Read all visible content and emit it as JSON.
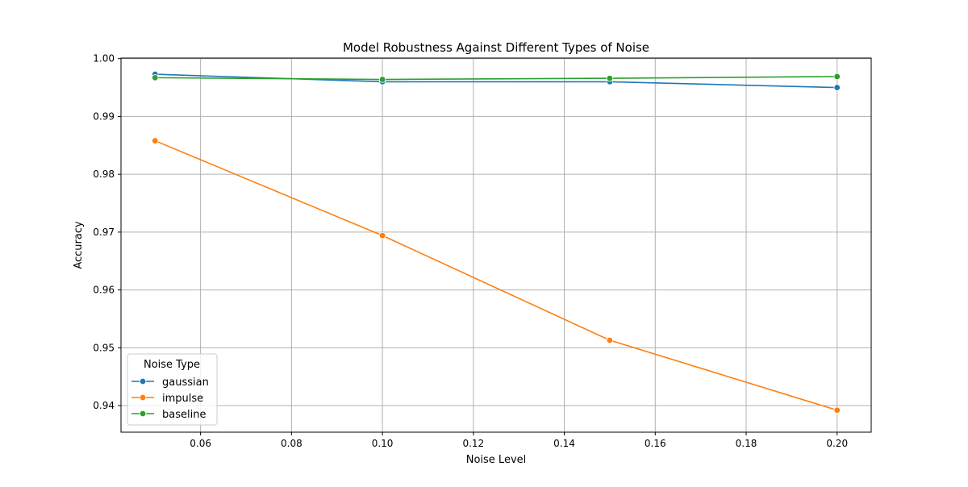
{
  "chart_data": {
    "type": "line",
    "title": "Model Robustness Against Different Types of Noise",
    "xlabel": "Noise Level",
    "ylabel": "Accuracy",
    "x": [
      0.05,
      0.1,
      0.15,
      0.2
    ],
    "xlim": [
      0.0425,
      0.2075
    ],
    "ylim": [
      0.9354,
      1.0001
    ],
    "xticks": [
      0.06,
      0.08,
      0.1,
      0.12,
      0.14,
      0.16,
      0.18,
      0.2
    ],
    "xtick_labels": [
      "0.06",
      "0.08",
      "0.10",
      "0.12",
      "0.14",
      "0.16",
      "0.18",
      "0.20"
    ],
    "yticks": [
      0.94,
      0.95,
      0.96,
      0.97,
      0.98,
      0.99,
      1.0
    ],
    "ytick_labels": [
      "0.94",
      "0.95",
      "0.96",
      "0.97",
      "0.98",
      "0.99",
      "1.00"
    ],
    "grid": true,
    "legend_title": "Noise Type",
    "legend_position": "bottom-left",
    "series": [
      {
        "name": "gaussian",
        "color": "#1f77b4",
        "values": [
          0.9973,
          0.996,
          0.996,
          0.995
        ]
      },
      {
        "name": "impulse",
        "color": "#ff7f0e",
        "values": [
          0.9858,
          0.9694,
          0.9513,
          0.9392
        ]
      },
      {
        "name": "baseline",
        "color": "#2ca02c",
        "values": [
          0.9967,
          0.9964,
          0.9966,
          0.9969
        ]
      }
    ]
  }
}
